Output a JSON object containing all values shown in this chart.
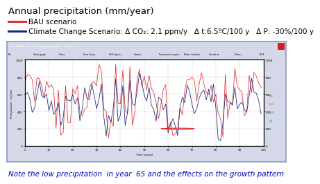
{
  "title": "Annual precipitation (mm/year)",
  "legend_bau": "BAU scenario",
  "legend_cc": "Climate Change Scenario: Δ CO₂: 2.1 ppm/y   Δ t:6.5ºC/100 y   Δ P: -30%/100 y",
  "note": "Note the low precipitation  in year  65 and the effects on the growth pattern",
  "bau_color": "#e03030",
  "cc_color": "#1a237e",
  "bg_color": "#ffffff",
  "window_bg": "#d4d8e8",
  "inner_plot_bg": "#ffffff",
  "title_fontsize": 9.5,
  "legend_fontsize": 7.5,
  "note_fontsize": 7.5,
  "note_color": "#0000cc",
  "ylim": [
    0,
    1000
  ],
  "xlim": [
    0,
    100
  ],
  "seed": 42,
  "titlebar_color": "#3366bb",
  "menubar_color": "#e8e8f0",
  "outer_border_color": "#8899bb",
  "grid_color": "#ccccdd"
}
